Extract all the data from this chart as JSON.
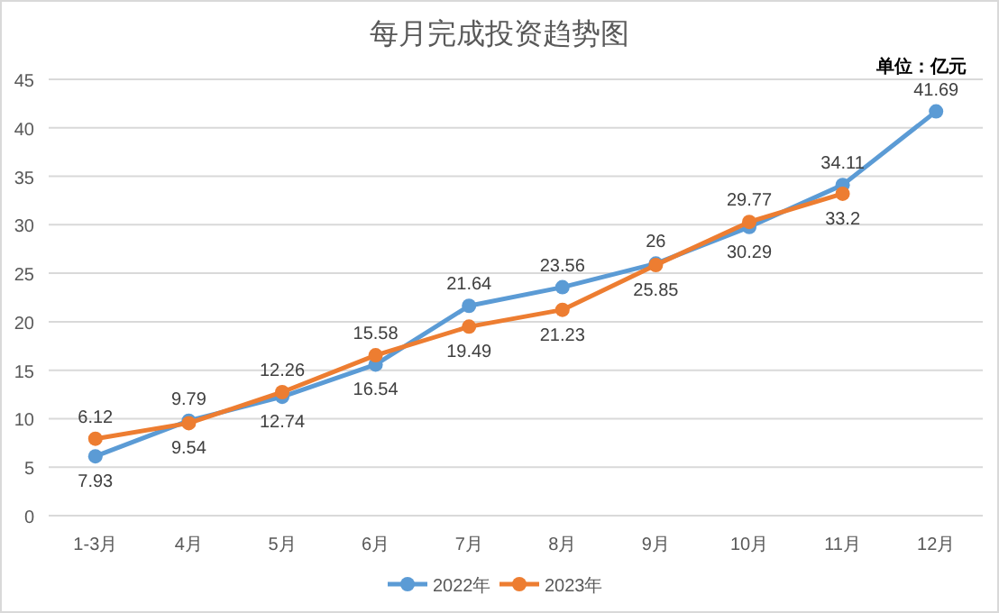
{
  "chart_data": {
    "type": "line",
    "title": "每月完成投资趋势图",
    "annotations": [
      "单位：亿元"
    ],
    "categories": [
      "1-3月",
      "4月",
      "5月",
      "6月",
      "7月",
      "8月",
      "9月",
      "10月",
      "11月",
      "12月"
    ],
    "series": [
      {
        "name": "2022年",
        "color": "#5b9bd5",
        "values": [
          6.12,
          9.79,
          12.26,
          15.58,
          21.64,
          23.56,
          26,
          29.77,
          34.11,
          41.69
        ]
      },
      {
        "name": "2023年",
        "color": "#ed7d31",
        "values": [
          7.93,
          9.54,
          12.74,
          16.54,
          19.49,
          21.23,
          25.85,
          30.29,
          33.2,
          null
        ]
      }
    ],
    "ylim": [
      0,
      45
    ],
    "yticks": [
      0,
      5,
      10,
      15,
      20,
      25,
      30,
      35,
      40,
      45
    ],
    "grid": "y",
    "legend": "bottom",
    "marker": "circle",
    "line_style": "solid",
    "data_labels": true
  }
}
